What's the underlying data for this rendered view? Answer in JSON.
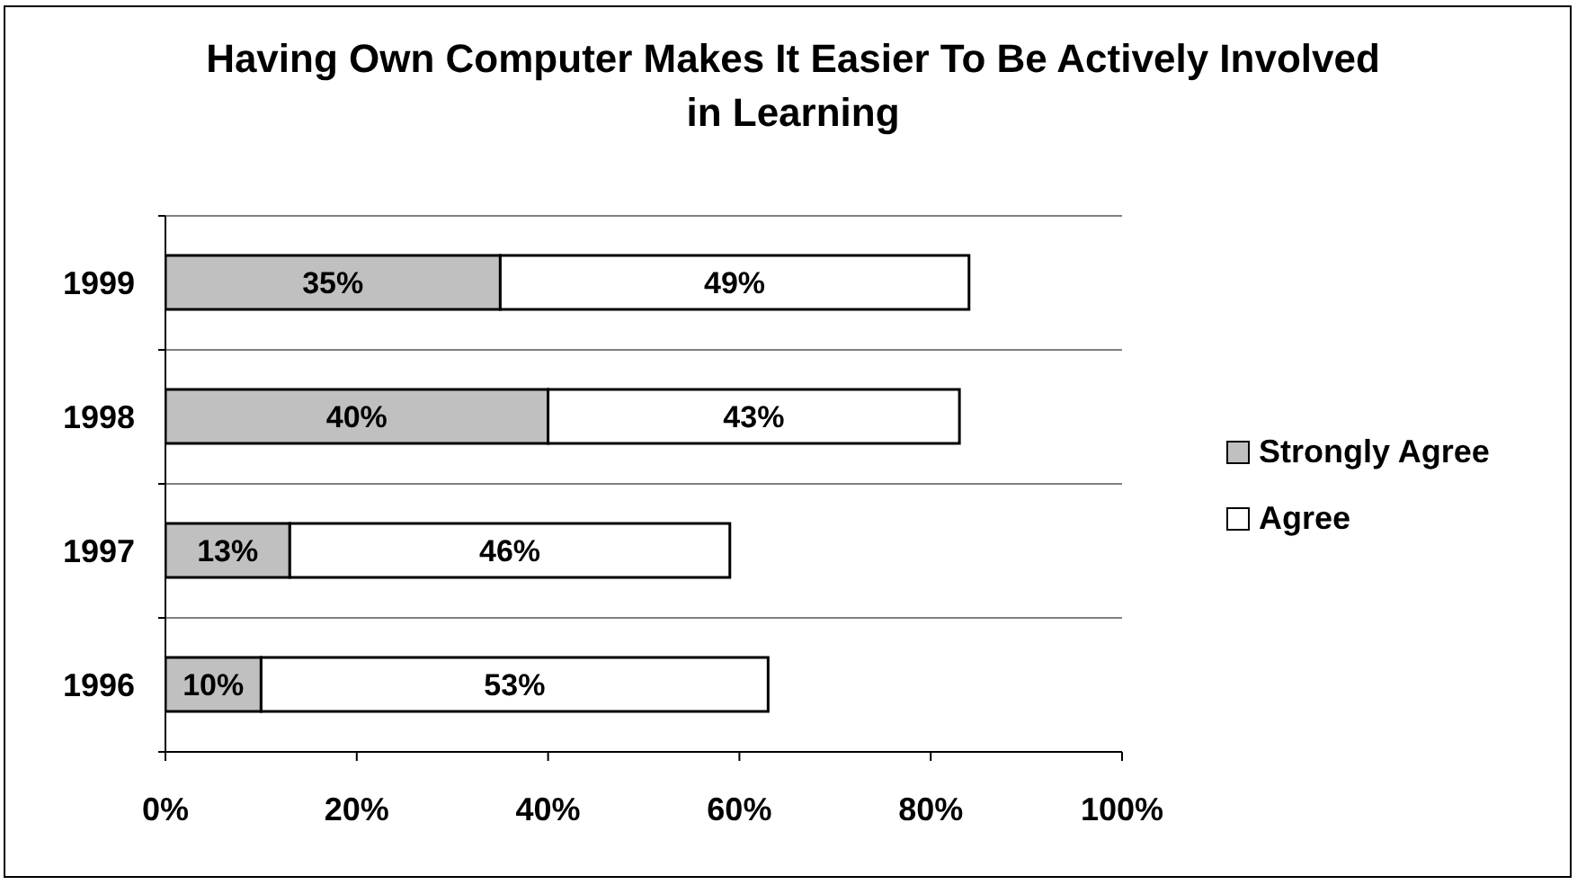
{
  "chart_data": {
    "type": "bar",
    "orientation": "horizontal",
    "stacked": true,
    "title": "Having Own Computer Makes It Easier To Be Actively Involved in Learning",
    "categories": [
      "1999",
      "1998",
      "1997",
      "1996"
    ],
    "series": [
      {
        "name": "Strongly Agree",
        "color": "#c0c0c0",
        "values": [
          35,
          40,
          13,
          10
        ],
        "value_labels": [
          "35%",
          "40%",
          "13%",
          "10%"
        ]
      },
      {
        "name": "Agree",
        "color": "#ffffff",
        "values": [
          49,
          43,
          46,
          53
        ],
        "value_labels": [
          "49%",
          "43%",
          "46%",
          "53%"
        ]
      }
    ],
    "xlim": [
      0,
      100
    ],
    "xticks": [
      {
        "value": 0,
        "label": "0%"
      },
      {
        "value": 20,
        "label": "20%"
      },
      {
        "value": 40,
        "label": "40%"
      },
      {
        "value": 60,
        "label": "60%"
      },
      {
        "value": 80,
        "label": "80%"
      },
      {
        "value": 100,
        "label": "100%"
      }
    ],
    "grid": "y",
    "legend": "right"
  }
}
